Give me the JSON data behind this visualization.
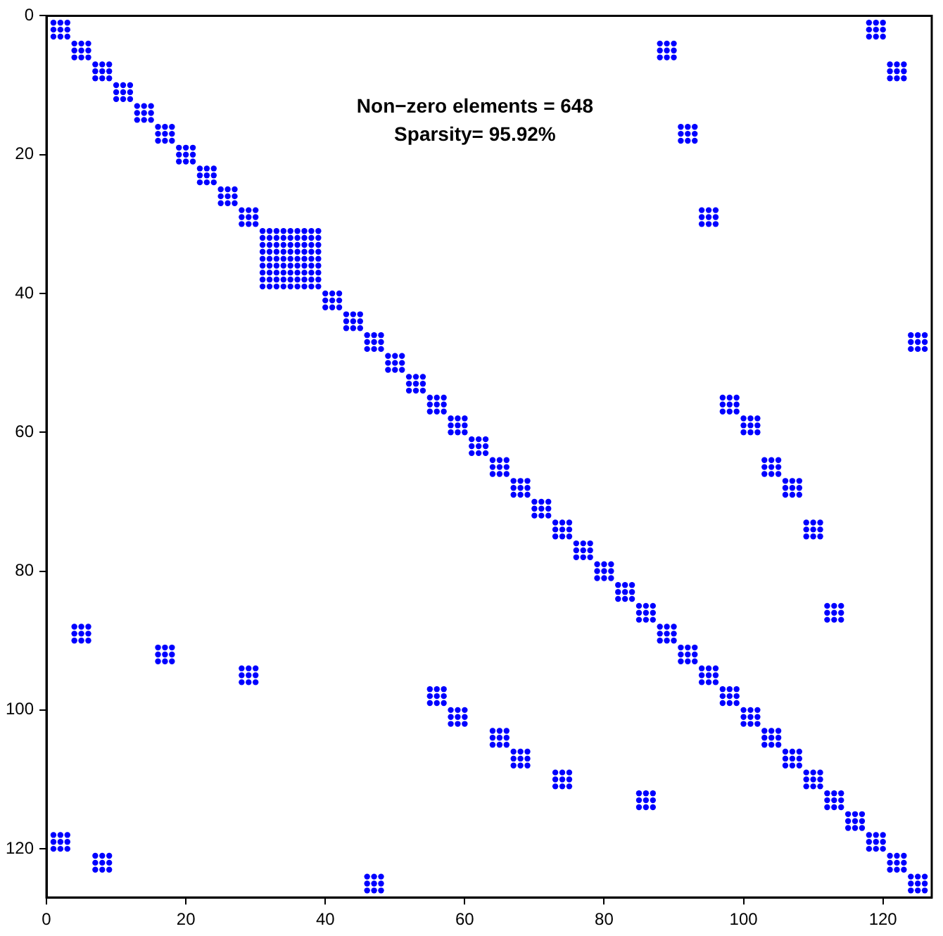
{
  "chart_data": {
    "type": "scatter",
    "marker": "circle",
    "annotations": [
      "Non−zero elements = 648",
      "Sparsity= 95.92%"
    ],
    "xlim": [
      0,
      127
    ],
    "ylim": [
      127,
      0
    ],
    "xticks": [
      0,
      20,
      40,
      60,
      80,
      100,
      120
    ],
    "yticks": [
      0,
      20,
      40,
      60,
      80,
      100,
      120
    ],
    "series": [
      {
        "color": "#0000ff",
        "x": [
          1,
          2,
          3,
          1,
          2,
          3,
          1,
          2,
          3,
          4,
          5,
          6,
          4,
          5,
          6,
          4,
          5,
          6,
          7,
          8,
          9,
          7,
          8,
          9,
          7,
          8,
          9,
          10,
          11,
          12,
          10,
          11,
          12,
          10,
          11,
          12,
          13,
          14,
          15,
          13,
          14,
          15,
          13,
          14,
          15,
          16,
          17,
          18,
          16,
          17,
          18,
          16,
          17,
          18,
          19,
          20,
          21,
          19,
          20,
          21,
          19,
          20,
          21,
          22,
          23,
          24,
          22,
          23,
          24,
          22,
          23,
          24,
          25,
          26,
          27,
          25,
          26,
          27,
          25,
          26,
          27,
          28,
          29,
          30,
          28,
          29,
          30,
          28,
          29,
          30,
          31,
          32,
          33,
          31,
          32,
          33,
          31,
          32,
          33,
          34,
          35,
          36,
          34,
          35,
          36,
          34,
          35,
          36,
          37,
          38,
          39,
          37,
          38,
          39,
          37,
          38,
          39,
          40,
          41,
          42,
          40,
          41,
          42,
          40,
          41,
          42,
          43,
          44,
          45,
          43,
          44,
          45,
          43,
          44,
          45,
          46,
          47,
          48,
          46,
          47,
          48,
          46,
          47,
          48,
          49,
          50,
          51,
          49,
          50,
          51,
          49,
          50,
          51,
          52,
          53,
          54,
          52,
          53,
          54,
          52,
          53,
          54,
          55,
          56,
          57,
          55,
          56,
          57,
          55,
          56,
          57,
          58,
          59,
          60,
          58,
          59,
          60,
          58,
          59,
          60,
          61,
          62,
          63,
          61,
          62,
          63,
          61,
          62,
          63,
          64,
          65,
          66,
          64,
          65,
          66,
          64,
          65,
          66,
          67,
          68,
          69,
          67,
          68,
          69,
          67,
          68,
          69,
          70,
          71,
          72,
          70,
          71,
          72,
          70,
          71,
          72,
          73,
          74,
          75,
          73,
          74,
          75,
          73,
          74,
          75,
          76,
          77,
          78,
          76,
          77,
          78,
          76,
          77,
          78,
          79,
          80,
          81,
          79,
          80,
          81,
          79,
          80,
          81,
          82,
          83,
          84,
          82,
          83,
          84,
          82,
          83,
          84,
          85,
          86,
          87,
          85,
          86,
          87,
          85,
          86,
          87,
          88,
          89,
          90,
          88,
          89,
          90,
          88,
          89,
          90,
          91,
          92,
          93,
          91,
          92,
          93,
          91,
          92,
          93,
          94,
          95,
          96,
          94,
          95,
          96,
          94,
          95,
          96,
          97,
          98,
          99,
          97,
          98,
          99,
          97,
          98,
          99,
          100,
          101,
          102,
          100,
          101,
          102,
          100,
          101,
          102,
          103,
          104,
          105,
          103,
          104,
          105,
          103,
          104,
          105,
          106,
          107,
          108,
          106,
          107,
          108,
          106,
          107,
          108,
          109,
          110,
          111,
          109,
          110,
          111,
          109,
          110,
          111,
          112,
          113,
          114,
          112,
          113,
          114,
          112,
          113,
          114,
          115,
          116,
          117,
          115,
          116,
          117,
          115,
          116,
          117,
          118,
          119,
          120,
          118,
          119,
          120,
          118,
          119,
          120,
          121,
          122,
          123,
          121,
          122,
          123,
          121,
          122,
          123,
          124,
          125,
          126,
          124,
          125,
          126,
          124,
          125,
          126,
          34,
          35,
          36,
          34,
          35,
          36,
          34,
          35,
          36,
          37,
          38,
          39,
          37,
          38,
          39,
          37,
          38,
          39,
          31,
          32,
          33,
          31,
          32,
          33,
          31,
          32,
          33,
          37,
          38,
          39,
          37,
          38,
          39,
          37,
          38,
          39,
          31,
          32,
          33,
          31,
          32,
          33,
          31,
          32,
          33,
          34,
          35,
          36,
          34,
          35,
          36,
          34,
          35,
          36,
          118,
          119,
          120,
          118,
          119,
          120,
          118,
          119,
          120,
          88,
          89,
          90,
          88,
          89,
          90,
          88,
          89,
          90,
          121,
          122,
          123,
          121,
          122,
          123,
          121,
          122,
          123,
          91,
          92,
          93,
          91,
          92,
          93,
          91,
          92,
          93,
          94,
          95,
          96,
          94,
          95,
          96,
          94,
          95,
          96,
          124,
          125,
          126,
          124,
          125,
          126,
          124,
          125,
          126,
          97,
          98,
          99,
          97,
          98,
          99,
          97,
          98,
          99,
          100,
          101,
          102,
          100,
          101,
          102,
          100,
          101,
          102,
          103,
          104,
          105,
          103,
          104,
          105,
          103,
          104,
          105,
          106,
          107,
          108,
          106,
          107,
          108,
          106,
          107,
          108,
          109,
          110,
          111,
          109,
          110,
          111,
          109,
          110,
          111,
          112,
          113,
          114,
          112,
          113,
          114,
          112,
          113,
          114,
          1,
          2,
          3,
          1,
          2,
          3,
          1,
          2,
          3,
          4,
          5,
          6,
          4,
          5,
          6,
          4,
          5,
          6,
          7,
          8,
          9,
          7,
          8,
          9,
          7,
          8,
          9,
          16,
          17,
          18,
          16,
          17,
          18,
          16,
          17,
          18,
          28,
          29,
          30,
          28,
          29,
          30,
          28,
          29,
          30,
          46,
          47,
          48,
          46,
          47,
          48,
          46,
          47,
          48,
          55,
          56,
          57,
          55,
          56,
          57,
          55,
          56,
          57,
          58,
          59,
          60,
          58,
          59,
          60,
          58,
          59,
          60,
          64,
          65,
          66,
          64,
          65,
          66,
          64,
          65,
          66,
          67,
          68,
          69,
          67,
          68,
          69,
          67,
          68,
          69,
          73,
          74,
          75,
          73,
          74,
          75,
          73,
          74,
          75,
          85,
          86,
          87,
          85,
          86,
          87,
          85,
          86,
          87
        ],
        "values": [
          1,
          1,
          1,
          2,
          2,
          2,
          3,
          3,
          3,
          4,
          4,
          4,
          5,
          5,
          5,
          6,
          6,
          6,
          7,
          7,
          7,
          8,
          8,
          8,
          9,
          9,
          9,
          10,
          10,
          10,
          11,
          11,
          11,
          12,
          12,
          12,
          13,
          13,
          13,
          14,
          14,
          14,
          15,
          15,
          15,
          16,
          16,
          16,
          17,
          17,
          17,
          18,
          18,
          18,
          19,
          19,
          19,
          20,
          20,
          20,
          21,
          21,
          21,
          22,
          22,
          22,
          23,
          23,
          23,
          24,
          24,
          24,
          25,
          25,
          25,
          26,
          26,
          26,
          27,
          27,
          27,
          28,
          28,
          28,
          29,
          29,
          29,
          30,
          30,
          30,
          31,
          31,
          31,
          32,
          32,
          32,
          33,
          33,
          33,
          34,
          34,
          34,
          35,
          35,
          35,
          36,
          36,
          36,
          37,
          37,
          37,
          38,
          38,
          38,
          39,
          39,
          39,
          40,
          40,
          40,
          41,
          41,
          41,
          42,
          42,
          42,
          43,
          43,
          43,
          44,
          44,
          44,
          45,
          45,
          45,
          46,
          46,
          46,
          47,
          47,
          47,
          48,
          48,
          48,
          49,
          49,
          49,
          50,
          50,
          50,
          51,
          51,
          51,
          52,
          52,
          52,
          53,
          53,
          53,
          54,
          54,
          54,
          55,
          55,
          55,
          56,
          56,
          56,
          57,
          57,
          57,
          58,
          58,
          58,
          59,
          59,
          59,
          60,
          60,
          60,
          61,
          61,
          61,
          62,
          62,
          62,
          63,
          63,
          63,
          64,
          64,
          64,
          65,
          65,
          65,
          66,
          66,
          66,
          67,
          67,
          67,
          68,
          68,
          68,
          69,
          69,
          69,
          70,
          70,
          70,
          71,
          71,
          71,
          72,
          72,
          72,
          73,
          73,
          73,
          74,
          74,
          74,
          75,
          75,
          75,
          76,
          76,
          76,
          77,
          77,
          77,
          78,
          78,
          78,
          79,
          79,
          79,
          80,
          80,
          80,
          81,
          81,
          81,
          82,
          82,
          82,
          83,
          83,
          83,
          84,
          84,
          84,
          85,
          85,
          85,
          86,
          86,
          86,
          87,
          87,
          87,
          88,
          88,
          88,
          89,
          89,
          89,
          90,
          90,
          90,
          91,
          91,
          91,
          92,
          92,
          92,
          93,
          93,
          93,
          94,
          94,
          94,
          95,
          95,
          95,
          96,
          96,
          96,
          97,
          97,
          97,
          98,
          98,
          98,
          99,
          99,
          99,
          100,
          100,
          100,
          101,
          101,
          101,
          102,
          102,
          102,
          103,
          103,
          103,
          104,
          104,
          104,
          105,
          105,
          105,
          106,
          106,
          106,
          107,
          107,
          107,
          108,
          108,
          108,
          109,
          109,
          109,
          110,
          110,
          110,
          111,
          111,
          111,
          112,
          112,
          112,
          113,
          113,
          113,
          114,
          114,
          114,
          115,
          115,
          115,
          116,
          116,
          116,
          117,
          117,
          117,
          118,
          118,
          118,
          119,
          119,
          119,
          120,
          120,
          120,
          121,
          121,
          121,
          122,
          122,
          122,
          123,
          123,
          123,
          124,
          124,
          124,
          125,
          125,
          125,
          126,
          126,
          126,
          31,
          31,
          31,
          32,
          32,
          32,
          33,
          33,
          33,
          31,
          31,
          31,
          32,
          32,
          32,
          33,
          33,
          33,
          34,
          34,
          34,
          35,
          35,
          35,
          36,
          36,
          36,
          34,
          34,
          34,
          35,
          35,
          35,
          36,
          36,
          36,
          37,
          37,
          37,
          38,
          38,
          38,
          39,
          39,
          39,
          37,
          37,
          37,
          38,
          38,
          38,
          39,
          39,
          39,
          1,
          1,
          1,
          2,
          2,
          2,
          3,
          3,
          3,
          4,
          4,
          4,
          5,
          5,
          5,
          6,
          6,
          6,
          7,
          7,
          7,
          8,
          8,
          8,
          9,
          9,
          9,
          16,
          16,
          16,
          17,
          17,
          17,
          18,
          18,
          18,
          28,
          28,
          28,
          29,
          29,
          29,
          30,
          30,
          30,
          46,
          46,
          46,
          47,
          47,
          47,
          48,
          48,
          48,
          55,
          55,
          55,
          56,
          56,
          56,
          57,
          57,
          57,
          58,
          58,
          58,
          59,
          59,
          59,
          60,
          60,
          60,
          64,
          64,
          64,
          65,
          65,
          65,
          66,
          66,
          66,
          67,
          67,
          67,
          68,
          68,
          68,
          69,
          69,
          69,
          73,
          73,
          73,
          74,
          74,
          74,
          75,
          75,
          75,
          85,
          85,
          85,
          86,
          86,
          86,
          87,
          87,
          87,
          118,
          118,
          118,
          119,
          119,
          119,
          120,
          120,
          120,
          88,
          88,
          88,
          89,
          89,
          89,
          90,
          90,
          90,
          121,
          121,
          121,
          122,
          122,
          122,
          123,
          123,
          123,
          91,
          91,
          91,
          92,
          92,
          92,
          93,
          93,
          93,
          94,
          94,
          94,
          95,
          95,
          95,
          96,
          96,
          96,
          124,
          124,
          124,
          125,
          125,
          125,
          126,
          126,
          126,
          97,
          97,
          97,
          98,
          98,
          98,
          99,
          99,
          99,
          100,
          100,
          100,
          101,
          101,
          101,
          102,
          102,
          102,
          103,
          103,
          103,
          104,
          104,
          104,
          105,
          105,
          105,
          106,
          106,
          106,
          107,
          107,
          107,
          108,
          108,
          108,
          109,
          109,
          109,
          110,
          110,
          110,
          111,
          111,
          111,
          112,
          112,
          112,
          113,
          113,
          113,
          114,
          114,
          114
        ]
      }
    ]
  }
}
